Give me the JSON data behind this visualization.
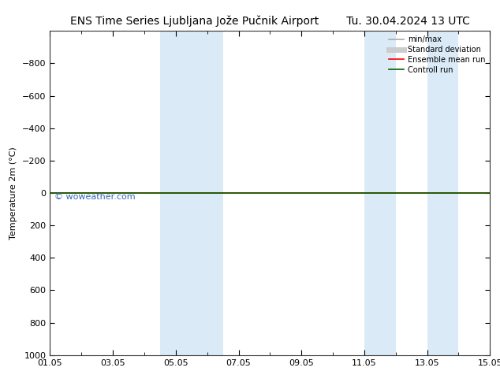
{
  "title_left": "ENS Time Series Ljubljana Jože Pučnik Airport",
  "title_right": "Tu. 30.04.2024 13 UTC",
  "ylabel": "Temperature 2m (°C)",
  "watermark": "© woweather.com",
  "ylim_bottom": 1000,
  "ylim_top": -1000,
  "yticks": [
    -800,
    -600,
    -400,
    -200,
    0,
    200,
    400,
    600,
    800,
    1000
  ],
  "x_min": 0,
  "x_max": 14,
  "xtick_major_positions": [
    0,
    2,
    4,
    6,
    8,
    10,
    12,
    14
  ],
  "xtick_labels": [
    "01.05",
    "03.05",
    "05.05",
    "07.05",
    "09.05",
    "11.05",
    "13.05",
    "15.05"
  ],
  "bg_color": "#ffffff",
  "plot_bg_color": "#ffffff",
  "shaded_bands": [
    {
      "x_start": 3.5,
      "x_end": 5.5,
      "color": "#daeaf7"
    },
    {
      "x_start": 10.0,
      "x_end": 11.0,
      "color": "#daeaf7"
    },
    {
      "x_start": 12.0,
      "x_end": 13.0,
      "color": "#daeaf7"
    }
  ],
  "flat_line_y": 0,
  "flat_line_color_red": "#ff0000",
  "flat_line_color_green": "#006400",
  "legend_items": [
    {
      "label": "min/max",
      "color": "#aaaaaa",
      "lw": 1.2
    },
    {
      "label": "Standard deviation",
      "color": "#cccccc",
      "lw": 5
    },
    {
      "label": "Ensemble mean run",
      "color": "#ff0000",
      "lw": 1.2
    },
    {
      "label": "Controll run",
      "color": "#006400",
      "lw": 1.2
    }
  ],
  "title_fontsize": 10,
  "axis_label_fontsize": 8,
  "tick_fontsize": 8,
  "legend_fontsize": 7,
  "watermark_color": "#3366bb",
  "watermark_fontsize": 8
}
